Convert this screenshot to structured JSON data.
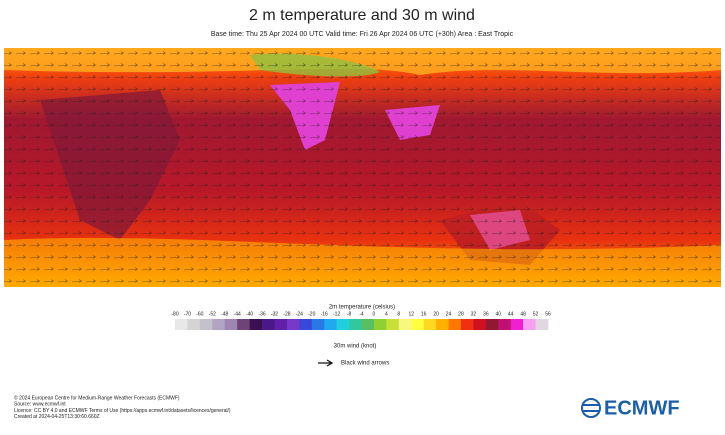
{
  "header": {
    "title": "2 m temperature and 30 m wind",
    "subtitle": "Base time: Thu 25 Apr 2024 00 UTC Valid time: Fri 26 Apr 2024 06 UTC (+30h) Area : East Tropic"
  },
  "legend": {
    "title": "2m temperature (celsius)",
    "ticks": [
      -80,
      -70,
      -60,
      -52,
      -48,
      -44,
      -40,
      -36,
      -32,
      -28,
      -24,
      -20,
      -16,
      -12,
      -8,
      -4,
      0,
      4,
      8,
      12,
      16,
      20,
      24,
      28,
      32,
      36,
      40,
      44,
      48,
      52,
      56
    ],
    "colors": [
      "#e8e8e8",
      "#d4d4d4",
      "#c4c0cc",
      "#b4a4c4",
      "#a084b4",
      "#6e4478",
      "#3a1050",
      "#4a1888",
      "#6020a8",
      "#7838c8",
      "#3848d8",
      "#2878e8",
      "#20a8f0",
      "#20d0e0",
      "#30c8a0",
      "#58c060",
      "#90d030",
      "#c8e038",
      "#f8f880",
      "#ffff40",
      "#ffd820",
      "#ffb000",
      "#ff7800",
      "#f03010",
      "#d01020",
      "#901830",
      "#c01070",
      "#f020d0",
      "#f8a0f0",
      "#e0d8e0"
    ]
  },
  "wind_legend": {
    "title": "30m wind (knot)",
    "arrow_label": "Black wind arrows"
  },
  "footer": {
    "lines": [
      "© 2024 European Centre for Medium-Range Weather Forecasts (ECMWF)",
      "Source: www.ecmwf.int",
      "Licence: CC BY 4.0 and ECMWF Terms of Use (https://apps.ecmwf.int/datasets/licences/general/)",
      "Created at 2024-04-25T13:30:60.660Z"
    ],
    "logo": "ECMWF"
  }
}
